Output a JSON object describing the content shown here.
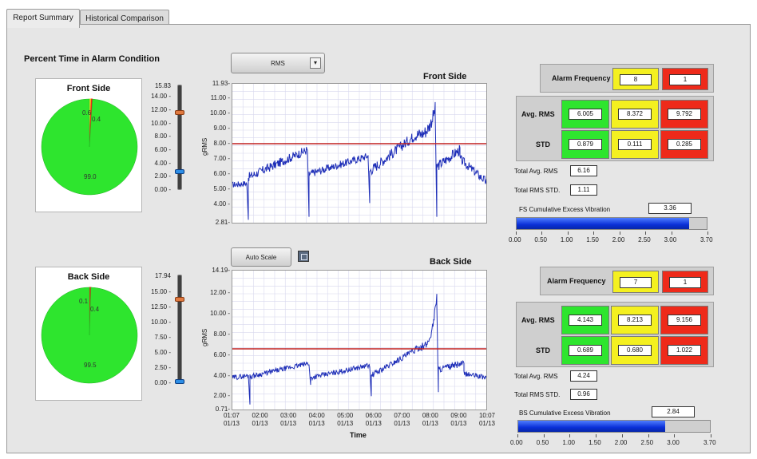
{
  "tabs": [
    {
      "label": "Report Summary",
      "active": true
    },
    {
      "label": "Historical Comparison",
      "active": false
    }
  ],
  "section_title": "Percent Time in Alarm Condition",
  "front": {
    "title": "Front Side",
    "pie": {
      "green": 99.0,
      "yellow": 0.6,
      "red": 0.4,
      "labels": [
        "0.6",
        "0.4",
        "99.0"
      ]
    },
    "slider": {
      "max_label": "15.83",
      "ticks": [
        "14.00",
        "12.00",
        "10.00",
        "8.00",
        "6.00",
        "4.00",
        "2.00",
        "0.00"
      ],
      "upper": 11.6,
      "lower": 2.8,
      "max": 15.83
    },
    "plot_title": "Front Side",
    "ylabel": "gRMS",
    "yticks": [
      "11.93",
      "11.00",
      "10.00",
      "9.00",
      "8.00",
      "7.00",
      "6.00",
      "5.00",
      "4.00",
      "2.81"
    ],
    "ymin": 2.81,
    "ymax": 11.93,
    "alarm": 8.0,
    "alarm_frequency_label": "Alarm Frequency",
    "alarm_frequency": [
      "8",
      "1"
    ],
    "avg_label": "Avg. RMS",
    "avg": [
      "6.005",
      "8.372",
      "9.792"
    ],
    "std_label": "STD",
    "std": [
      "0.879",
      "0.111",
      "0.285"
    ],
    "total_avg_label": "Total Avg. RMS",
    "total_avg": "6.16",
    "total_std_label": "Total RMS STD.",
    "total_std": "1.11",
    "cum_label": "FS Cumulative Excess Vibration",
    "cum_value": "3.36",
    "cum_fraction": 0.908,
    "scale": [
      "0.00",
      "0.50",
      "1.00",
      "1.50",
      "2.00",
      "2.50",
      "3.00",
      "3.70"
    ]
  },
  "back": {
    "title": "Back Side",
    "pie": {
      "green": 99.5,
      "yellow": 0.1,
      "red": 0.4,
      "labels": [
        "0.1",
        "0.4",
        "99.5"
      ]
    },
    "slider": {
      "max_label": "17.94",
      "ticks": [
        "15.00",
        "12.50",
        "10.00",
        "7.50",
        "5.00",
        "2.50",
        "0.00"
      ],
      "upper": 13.8,
      "lower": 0.3,
      "max": 17.94
    },
    "plot_title": "Back Side",
    "ylabel": "gRMS",
    "yticks": [
      "14.19",
      "12.00",
      "10.00",
      "8.00",
      "6.00",
      "4.00",
      "2.00",
      "0.71"
    ],
    "ymin": 0.71,
    "ymax": 14.19,
    "alarm": 6.6,
    "alarm_frequency_label": "Alarm Frequency",
    "alarm_frequency": [
      "7",
      "1"
    ],
    "avg_label": "Avg. RMS",
    "avg": [
      "4.143",
      "8.213",
      "9.156"
    ],
    "std_label": "STD",
    "std": [
      "0.689",
      "0.680",
      "1.022"
    ],
    "total_avg_label": "Total Avg. RMS",
    "total_avg": "4.24",
    "total_std_label": "Total RMS STD.",
    "total_std": "0.96",
    "cum_label": "BS Cumulative Excess Vibration",
    "cum_value": "2.84",
    "cum_fraction": 0.768,
    "scale": [
      "0.00",
      "0.50",
      "1.00",
      "1.50",
      "2.00",
      "2.50",
      "3.00",
      "3.70"
    ]
  },
  "rms_dropdown": "RMS",
  "autoscale_label": "Auto Scale",
  "xticks": [
    {
      "t": "01:07",
      "d": "01/13"
    },
    {
      "t": "02:00",
      "d": "01/13"
    },
    {
      "t": "03:00",
      "d": "01/13"
    },
    {
      "t": "04:00",
      "d": "01/13"
    },
    {
      "t": "05:00",
      "d": "01/13"
    },
    {
      "t": "06:00",
      "d": "01/13"
    },
    {
      "t": "07:00",
      "d": "01/13"
    },
    {
      "t": "08:00",
      "d": "01/13"
    },
    {
      "t": "09:00",
      "d": "01/13"
    },
    {
      "t": "10:07",
      "d": "01/13"
    }
  ],
  "xlabel": "Time",
  "colors": {
    "green": "#2ee52e",
    "yellow": "#f4f020",
    "red": "#ee2a1a",
    "trace": "#1f2fb8",
    "alarm_line": "#c02020"
  }
}
